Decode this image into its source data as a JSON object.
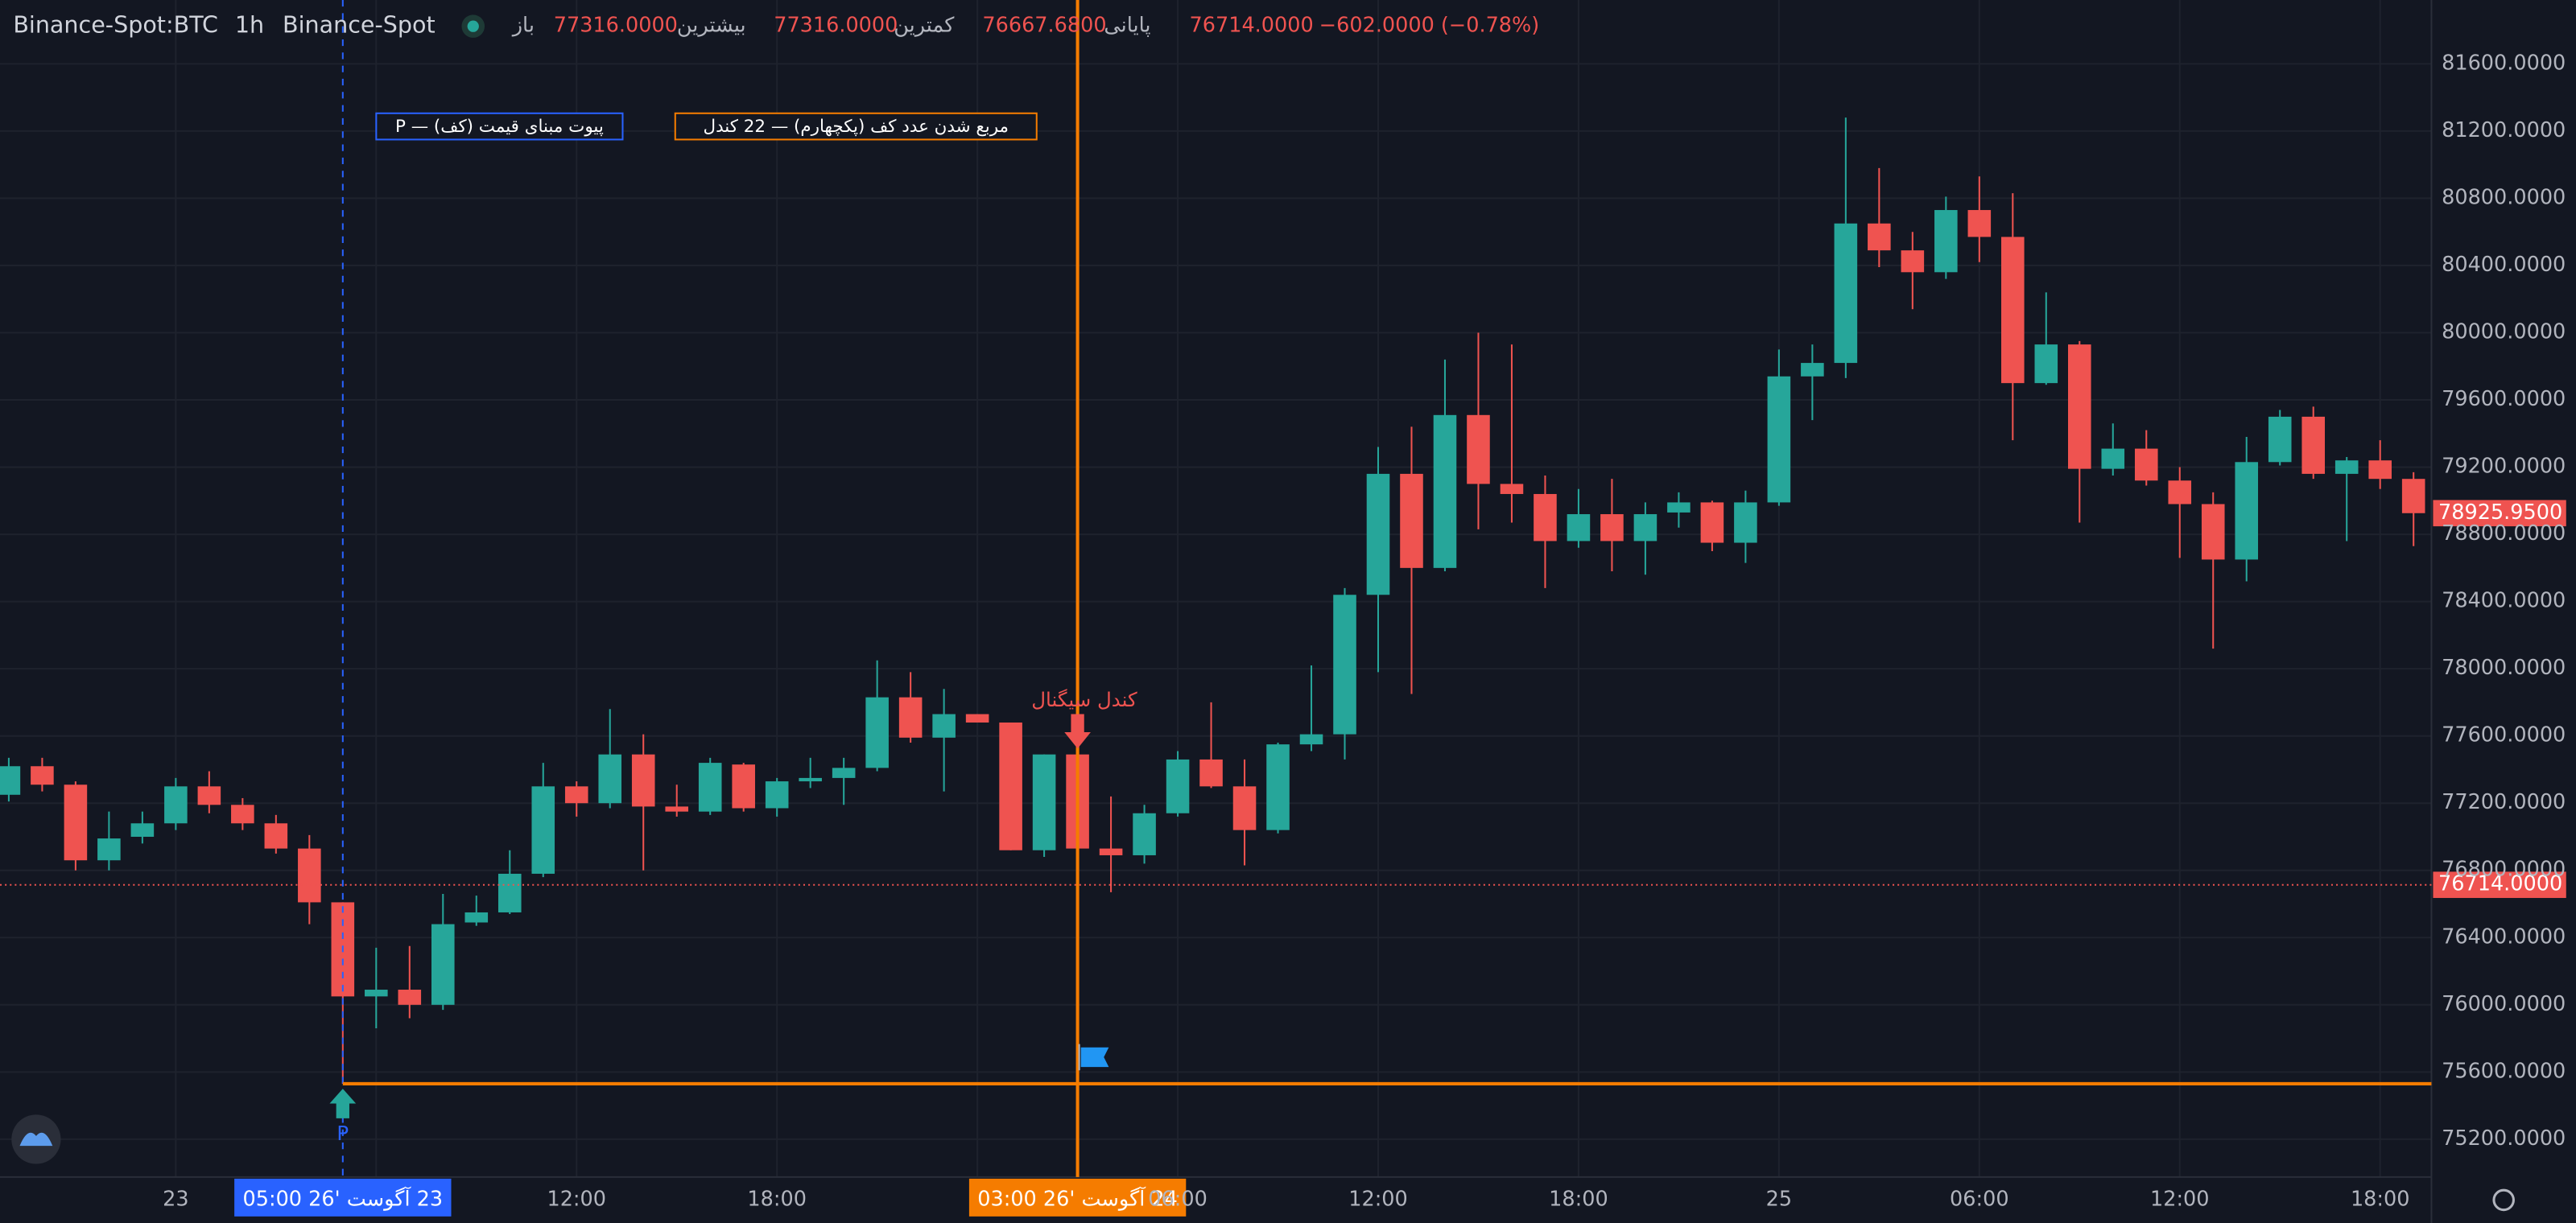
{
  "legend_bar": {
    "symbol": "Binance-Spot:BTC",
    "interval": "1h",
    "exchange": "Binance-Spot",
    "open_label": "باز",
    "open": "77316.0000",
    "high_label": "بیشترین",
    "high": "77316.0000",
    "low_label": "کمترین",
    "low": "76667.6800",
    "close_label": "پایانی",
    "close": "76714.0000",
    "change": "−602.0000 (−0.78%)"
  },
  "annotations": {
    "pivot_box": "P — پیوت مبنای قیمت (کف)",
    "count_box": "مربع شدن عدد کف (پکچهارم) — 22 کندل",
    "signal": "کندل سیگنال",
    "pivot_marker": "P",
    "pivot_time": "23 آگوست '26 05:00",
    "signal_time": "24 آگوست '26 03:00"
  },
  "chart_data": {
    "type": "candlestick",
    "grid": true,
    "up_color": "#26a69a",
    "down_color": "#ef5350",
    "categories": [
      null,
      null,
      null,
      null,
      null,
      "23",
      null,
      null,
      null,
      null,
      null,
      null,
      null,
      null,
      null,
      null,
      null,
      "12:00",
      null,
      null,
      null,
      null,
      null,
      "18:00",
      null,
      null,
      null,
      null,
      null,
      null,
      null,
      null,
      null,
      null,
      null,
      "06:00",
      null,
      null,
      null,
      null,
      null,
      "12:00",
      null,
      null,
      null,
      null,
      null,
      "18:00",
      null,
      null,
      null,
      null,
      null,
      "25",
      null,
      null,
      null,
      null,
      null,
      "06:00",
      null,
      null,
      null,
      null,
      null,
      "12:00",
      null,
      null,
      null,
      null,
      null,
      "18:00",
      null
    ],
    "open": [
      77250,
      77420,
      77310,
      76860,
      77000,
      77080,
      77300,
      77190,
      77080,
      76930,
      76610,
      76050,
      76090,
      76000,
      76490,
      76550,
      76780,
      77300,
      77200,
      77490,
      77180,
      77150,
      77430,
      77170,
      77330,
      77350,
      77410,
      77830,
      77590,
      77730,
      77680,
      76920,
      77490,
      76930,
      76890,
      77140,
      77460,
      77300,
      77040,
      77550,
      77610,
      78440,
      79160,
      78600,
      79510,
      79100,
      79040,
      78760,
      78920,
      78760,
      78930,
      78990,
      78750,
      78990,
      79740,
      79820,
      80650,
      80490,
      80360,
      80730,
      80570,
      79700,
      79930,
      79190,
      79310,
      79120,
      78980,
      78650,
      79230,
      79500,
      79160,
      79240,
      79130
    ],
    "high": [
      77470,
      77470,
      77330,
      77150,
      77150,
      77350,
      77390,
      77230,
      77130,
      77010,
      76610,
      76340,
      76350,
      76660,
      76650,
      76920,
      77440,
      77330,
      77760,
      77610,
      77310,
      77470,
      77440,
      77350,
      77470,
      77470,
      78050,
      77980,
      77880,
      77730,
      77680,
      77490,
      77540,
      77240,
      77190,
      77510,
      77800,
      77460,
      77560,
      78020,
      78480,
      79320,
      79440,
      79840,
      80000,
      79930,
      79150,
      79070,
      79130,
      78990,
      79050,
      79000,
      79060,
      79900,
      79930,
      81280,
      80980,
      80600,
      80810,
      80930,
      80830,
      80240,
      79950,
      79460,
      79420,
      79200,
      79050,
      79380,
      79540,
      79560,
      79260,
      79360,
      79170
    ],
    "low": [
      77210,
      77270,
      76800,
      76800,
      76960,
      77040,
      77140,
      77040,
      76900,
      76480,
      75530,
      75860,
      75920,
      75970,
      76470,
      76540,
      76760,
      77120,
      77170,
      76800,
      77120,
      77130,
      77150,
      77120,
      77290,
      77190,
      77390,
      77560,
      77270,
      77680,
      76920,
      76880,
      76900,
      76670,
      76840,
      77120,
      77290,
      76830,
      77020,
      77510,
      77460,
      77980,
      77850,
      78580,
      78830,
      78870,
      78480,
      78720,
      78580,
      78560,
      78840,
      78700,
      78630,
      78970,
      79480,
      79730,
      80390,
      80140,
      80320,
      80420,
      79360,
      79690,
      78870,
      79150,
      79090,
      78660,
      78120,
      78520,
      79210,
      79130,
      78760,
      79070,
      78730
    ],
    "close": [
      77420,
      77310,
      76860,
      76990,
      77080,
      77300,
      77190,
      77080,
      76930,
      76610,
      76050,
      76090,
      76000,
      76480,
      76550,
      76780,
      77300,
      77200,
      77490,
      77180,
      77150,
      77440,
      77170,
      77330,
      77350,
      77410,
      77830,
      77590,
      77730,
      77680,
      76920,
      77490,
      76930,
      76890,
      77140,
      77460,
      77300,
      77040,
      77550,
      77610,
      78440,
      79160,
      78600,
      79510,
      79100,
      79040,
      78760,
      78920,
      78760,
      78920,
      78990,
      78750,
      78990,
      79740,
      79820,
      80650,
      80490,
      80360,
      80730,
      80570,
      79700,
      79930,
      79190,
      79310,
      79120,
      78980,
      78650,
      79230,
      79500,
      79160,
      79240,
      79130,
      78925.95
    ],
    "ylim": [
      74975,
      81980
    ],
    "yticks": [
      {
        "value": 75200,
        "label": "75200.0000"
      },
      {
        "value": 75600,
        "label": "75600.0000"
      },
      {
        "value": 76000,
        "label": "76000.0000"
      },
      {
        "value": 76400,
        "label": "76400.0000"
      },
      {
        "value": 76800,
        "label": "76800.0000"
      },
      {
        "value": 77200,
        "label": "77200.0000"
      },
      {
        "value": 77600,
        "label": "77600.0000"
      },
      {
        "value": 78000,
        "label": "78000.0000"
      },
      {
        "value": 78400,
        "label": "78400.0000"
      },
      {
        "value": 78800,
        "label": "78800.0000"
      },
      {
        "value": 79200,
        "label": "79200.0000"
      },
      {
        "value": 79600,
        "label": "79600.0000"
      },
      {
        "value": 80000,
        "label": "80000.0000"
      },
      {
        "value": 80400,
        "label": "80400.0000"
      },
      {
        "value": 80800,
        "label": "80800.0000"
      },
      {
        "value": 81200,
        "label": "81200.0000"
      },
      {
        "value": 81600,
        "label": "81600.0000"
      }
    ],
    "last_price": {
      "value": 78925.95,
      "label": "78925.9500"
    },
    "crosshair_price": {
      "value": 76714,
      "label": "76714.0000"
    }
  }
}
